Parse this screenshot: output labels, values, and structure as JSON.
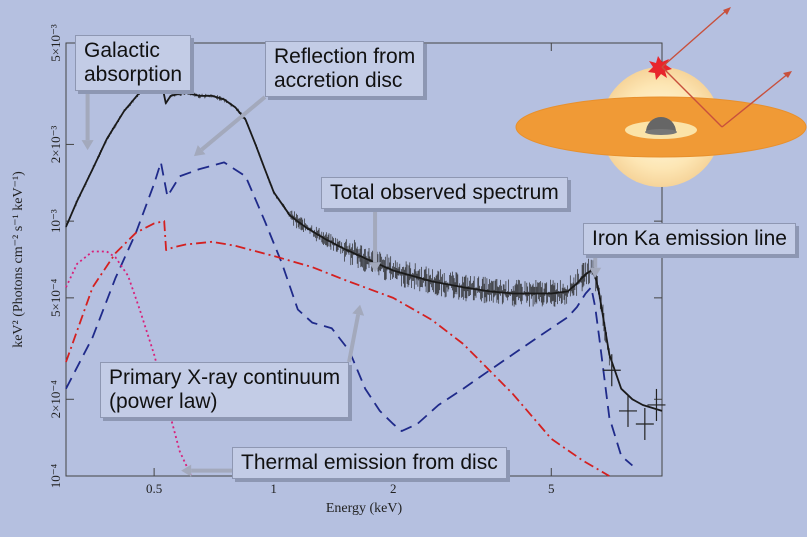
{
  "chart_data": {
    "type": "line",
    "xlabel": "Energy (keV)",
    "ylabel": "keV² (Photons cm⁻² s⁻¹ keV⁻¹)",
    "x_scale": "log",
    "y_scale": "log",
    "xlim": [
      0.3,
      9.5
    ],
    "ylim": [
      0.0001,
      0.005
    ],
    "x_ticks": [
      {
        "value": 0.5,
        "label": "0.5"
      },
      {
        "value": 1,
        "label": "1"
      },
      {
        "value": 2,
        "label": "2"
      },
      {
        "value": 5,
        "label": "5"
      }
    ],
    "y_ticks": [
      {
        "value": 0.0001,
        "label": "10⁻⁴"
      },
      {
        "value": 0.0002,
        "label": "2×10⁻⁴"
      },
      {
        "value": 0.0005,
        "label": "5×10⁻⁴"
      },
      {
        "value": 0.001,
        "label": "10⁻³"
      },
      {
        "value": 0.002,
        "label": "2×10⁻³"
      },
      {
        "value": 0.005,
        "label": "5×10⁻³"
      }
    ],
    "series": [
      {
        "key": "total",
        "color": "#1a1a1a",
        "style": "solid",
        "x": [
          0.3,
          0.32,
          0.35,
          0.38,
          0.42,
          0.46,
          0.5,
          0.52,
          0.535,
          0.55,
          0.6,
          0.65,
          0.7,
          0.75,
          0.8,
          0.85,
          0.9,
          0.95,
          1.0,
          1.1,
          1.2,
          1.35,
          1.5,
          1.75,
          2.0,
          2.5,
          3.0,
          3.5,
          4.0,
          4.5,
          5.0,
          5.5,
          5.8,
          6.1,
          6.3,
          6.45,
          6.6,
          7.0,
          7.5,
          8.0,
          8.5,
          9.5
        ],
        "y": [
          0.00095,
          0.0012,
          0.0016,
          0.0021,
          0.0027,
          0.0032,
          0.0035,
          0.0036,
          0.0029,
          0.0031,
          0.0032,
          0.0031,
          0.0031,
          0.003,
          0.0028,
          0.0025,
          0.002,
          0.0016,
          0.0013,
          0.00105,
          0.00095,
          0.00085,
          0.00078,
          0.0007,
          0.00064,
          0.00058,
          0.00055,
          0.00053,
          0.00052,
          0.00052,
          0.00052,
          0.00053,
          0.00057,
          0.00062,
          0.00064,
          0.00061,
          0.00052,
          0.0003,
          0.00022,
          0.0002,
          0.00019,
          0.00018
        ]
      },
      {
        "key": "reflection",
        "color": "#1f2a8a",
        "style": "dashed",
        "x": [
          0.3,
          0.35,
          0.4,
          0.45,
          0.5,
          0.52,
          0.54,
          0.58,
          0.65,
          0.75,
          0.85,
          0.95,
          1.05,
          1.15,
          1.25,
          1.4,
          1.55,
          1.7,
          1.85,
          2.0,
          2.1,
          2.3,
          2.6,
          3.0,
          3.5,
          4.0,
          4.5,
          5.0,
          5.5,
          5.8,
          6.1,
          6.3,
          6.45,
          6.6,
          7.0,
          7.5,
          8.0
        ],
        "y": [
          0.00022,
          0.00035,
          0.0006,
          0.0009,
          0.0014,
          0.0017,
          0.00125,
          0.0015,
          0.0016,
          0.0017,
          0.0015,
          0.001,
          0.00068,
          0.00045,
          0.0004,
          0.00038,
          0.00031,
          0.00022,
          0.00018,
          0.00016,
          0.00015,
          0.00016,
          0.00019,
          0.00022,
          0.00026,
          0.0003,
          0.00034,
          0.00038,
          0.00042,
          0.00046,
          0.00052,
          0.00055,
          0.00046,
          0.00035,
          0.00017,
          0.00012,
          0.00011
        ]
      },
      {
        "key": "power_law",
        "color": "#d42020",
        "style": "dashdot",
        "x": [
          0.3,
          0.35,
          0.4,
          0.45,
          0.5,
          0.53,
          0.536,
          0.56,
          0.6,
          0.7,
          0.8,
          1.0,
          1.25,
          1.5,
          2.0,
          2.5,
          3.0,
          4.0,
          5.0,
          6.0,
          7.0
        ],
        "y": [
          0.00028,
          0.00055,
          0.00075,
          0.0009,
          0.00098,
          0.001,
          0.00077,
          0.00079,
          0.00081,
          0.00083,
          0.0008,
          0.00073,
          0.00066,
          0.00059,
          0.0005,
          0.00041,
          0.00033,
          0.00021,
          0.00014,
          0.000115,
          0.0001
        ]
      },
      {
        "key": "thermal_disc",
        "color": "#d8207a",
        "style": "dotted",
        "x": [
          0.3,
          0.32,
          0.35,
          0.38,
          0.4,
          0.43,
          0.46,
          0.5,
          0.54,
          0.58,
          0.62
        ],
        "y": [
          0.00055,
          0.00068,
          0.00076,
          0.00076,
          0.00072,
          0.00061,
          0.00045,
          0.0003,
          0.00019,
          0.000125,
          0.0001
        ]
      }
    ],
    "data_points": {
      "x": [
        7.1,
        7.8,
        8.6,
        9.2
      ],
      "y": [
        0.00026,
        0.00018,
        0.00016,
        0.00019
      ]
    },
    "annotations": [
      {
        "key": "galactic",
        "text": "Galactic\nabsorption",
        "target_x": 0.34,
        "target_y": 0.0019
      },
      {
        "key": "reflection",
        "text": "Reflection from\naccretion disc",
        "target_x": 0.63,
        "target_y": 0.0018
      },
      {
        "key": "total",
        "text": "Total observed spectrum",
        "target_x": 1.8,
        "target_y": 0.00063
      },
      {
        "key": "iron",
        "text": "Iron Ka emission line",
        "target_x": 6.45,
        "target_y": 0.0006
      },
      {
        "key": "primary",
        "text": "Primary X-ray continuum\n(power law)",
        "target_x": 1.65,
        "target_y": 0.00047
      },
      {
        "key": "thermal",
        "text": "Thermal emission from disc",
        "target_x": 0.585,
        "target_y": 0.000105
      }
    ]
  }
}
